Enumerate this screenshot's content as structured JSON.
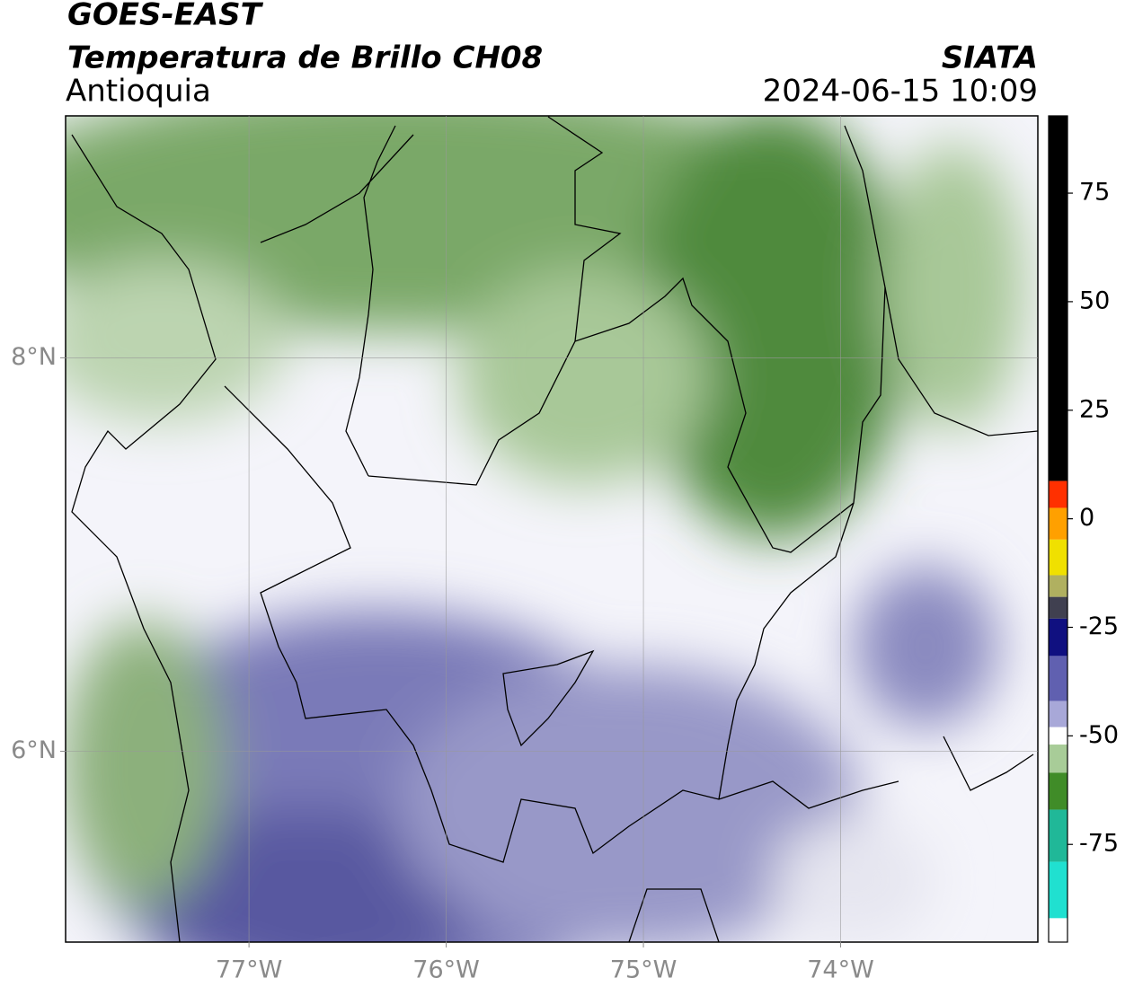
{
  "header": {
    "line1": "GOES-EAST",
    "line2": "Temperatura de Brillo CH08",
    "region": "Antioquia",
    "source": "SIATA",
    "datetime": "2024-06-15 10:09"
  },
  "map": {
    "lon_range": [
      -77.93,
      -73.0
    ],
    "lat_range": [
      5.03,
      9.23
    ],
    "grid": true,
    "tick_color": "#8a8a8a",
    "lon_ticks": [
      {
        "value": -77,
        "label": "77°W"
      },
      {
        "value": -76,
        "label": "76°W"
      },
      {
        "value": -75,
        "label": "75°W"
      },
      {
        "value": -74,
        "label": "74°W"
      }
    ],
    "lat_ticks": [
      {
        "value": 8,
        "label": "8°N"
      },
      {
        "value": 6,
        "label": "6°N"
      }
    ]
  },
  "colorbar": {
    "range": [
      -97.5,
      92.8
    ],
    "ticks": [
      75,
      50,
      25,
      0,
      -25,
      -50,
      -75
    ],
    "segments": [
      {
        "from": 8.7,
        "to": 92.8,
        "color": "#000000"
      },
      {
        "from": 2.5,
        "to": 8.7,
        "color": "#ff3000"
      },
      {
        "from": -4.8,
        "to": 2.5,
        "color": "#ffa000"
      },
      {
        "from": -13,
        "to": -4.8,
        "color": "#f0e000"
      },
      {
        "from": -18,
        "to": -13,
        "color": "#b0b060"
      },
      {
        "from": -23,
        "to": -18,
        "color": "#404050"
      },
      {
        "from": -31.6,
        "to": -23,
        "color": "#101080"
      },
      {
        "from": -42,
        "to": -31.6,
        "color": "#6060b0"
      },
      {
        "from": -48,
        "to": -42,
        "color": "#a8a8d8"
      },
      {
        "from": -52,
        "to": -48,
        "color": "#ffffff"
      },
      {
        "from": -58.5,
        "to": -52,
        "color": "#a8cc98"
      },
      {
        "from": -67,
        "to": -58.5,
        "color": "#408c28"
      },
      {
        "from": -79,
        "to": -67,
        "color": "#20b898"
      },
      {
        "from": -92,
        "to": -79,
        "color": "#20e0d0"
      },
      {
        "from": -97.5,
        "to": -92,
        "color": "#ffffff"
      }
    ]
  }
}
